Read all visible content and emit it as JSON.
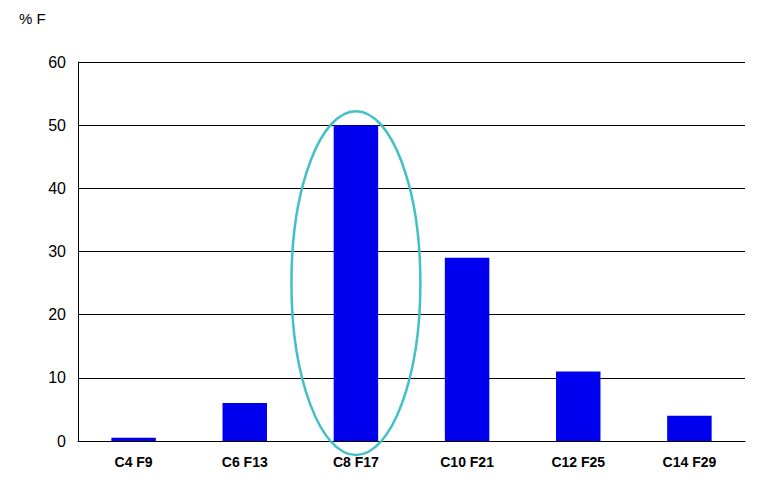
{
  "chart_data": {
    "type": "bar",
    "y_label": "% F",
    "categories": [
      "C4 F9",
      "C6 F13",
      "C8 F17",
      "C10 F21",
      "C12 F25",
      "C14 F29"
    ],
    "values": [
      0.5,
      6,
      50,
      29,
      11,
      4
    ],
    "color": "#0000ee",
    "ylim": [
      0,
      60
    ],
    "yticks": [
      0,
      10,
      20,
      30,
      40,
      50,
      60
    ],
    "grid": true
  }
}
